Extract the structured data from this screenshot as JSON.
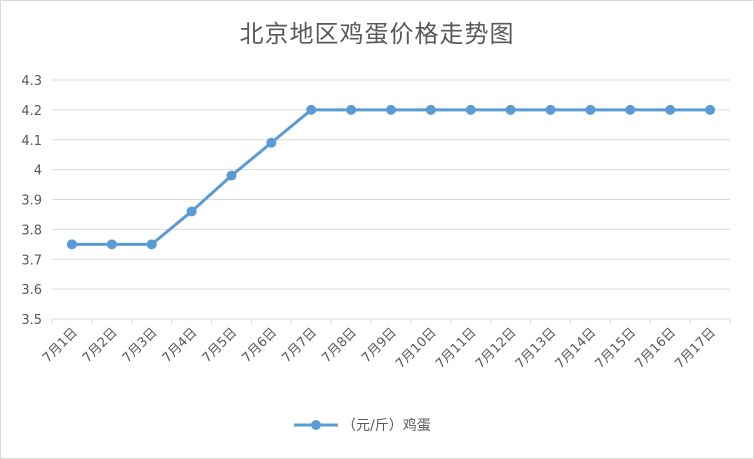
{
  "chart_data": {
    "type": "line",
    "title": "北京地区鸡蛋价格走势图",
    "xlabel": "",
    "ylabel": "",
    "categories": [
      "7月1日",
      "7月2日",
      "7月3日",
      "7月4日",
      "7月5日",
      "7月6日",
      "7月7日",
      "7月8日",
      "7月9日",
      "7月10日",
      "7月11日",
      "7月12日",
      "7月13日",
      "7月14日",
      "7月15日",
      "7月16日",
      "7月17日"
    ],
    "series": [
      {
        "name": "（元/斤）鸡蛋",
        "color": "#5b9bd5",
        "values": [
          3.75,
          3.75,
          3.75,
          3.86,
          3.98,
          4.09,
          4.2,
          4.2,
          4.2,
          4.2,
          4.2,
          4.2,
          4.2,
          4.2,
          4.2,
          4.2,
          4.2
        ]
      }
    ],
    "ylim": [
      3.5,
      4.3
    ],
    "yticks": [
      "3.5",
      "3.6",
      "3.7",
      "3.8",
      "3.9",
      "4",
      "4.1",
      "4.2",
      "4.3"
    ],
    "grid": true,
    "legend": "bottom"
  }
}
